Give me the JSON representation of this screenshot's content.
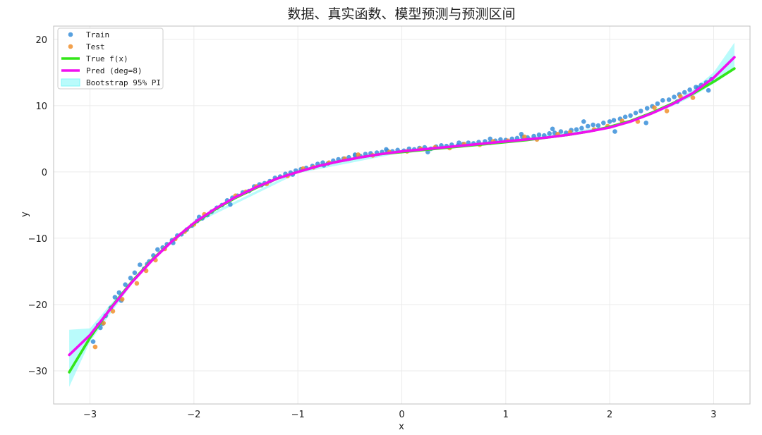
{
  "chart_data": {
    "type": "scatter",
    "title": "数据、真实函数、模型预测与预测区间",
    "xlabel": "x",
    "ylabel": "y",
    "xlim": [
      -3.35,
      3.35
    ],
    "ylim": [
      -35,
      22
    ],
    "xticks": [
      -3,
      -2,
      -1,
      0,
      1,
      2,
      3
    ],
    "xtick_labels": [
      "−3",
      "−2",
      "−1",
      "0",
      "1",
      "2",
      "3"
    ],
    "yticks": [
      -30,
      -20,
      -10,
      0,
      10,
      20
    ],
    "ytick_labels": [
      "−30",
      "−20",
      "−10",
      "0",
      "10",
      "20"
    ],
    "grid": true,
    "legend_position": "top-left",
    "legend": [
      "Train",
      "Test",
      "True f(x)",
      "Pred (deg=8)",
      "Bootstrap 95% PI"
    ],
    "colors": {
      "train": "#3a8fd9",
      "test": "#f0902e",
      "true": "#33e619",
      "pred": "#f010f0",
      "band": "#7ff7f7"
    },
    "true_function": {
      "x": [
        -3.2,
        -3.0,
        -2.8,
        -2.6,
        -2.4,
        -2.2,
        -2.0,
        -1.8,
        -1.6,
        -1.4,
        -1.2,
        -1.0,
        -0.8,
        -0.6,
        -0.4,
        -0.2,
        0.0,
        0.2,
        0.4,
        0.6,
        0.8,
        1.0,
        1.2,
        1.4,
        1.6,
        1.8,
        2.0,
        2.2,
        2.4,
        2.6,
        2.8,
        3.0,
        3.2
      ],
      "y": [
        -30.2,
        -25.0,
        -20.5,
        -16.6,
        -13.2,
        -10.3,
        -7.8,
        -5.7,
        -3.9,
        -2.4,
        -1.0,
        0.0,
        0.9,
        1.6,
        2.2,
        2.7,
        3.0,
        3.3,
        3.6,
        3.9,
        4.2,
        4.5,
        4.8,
        5.2,
        5.6,
        6.1,
        6.8,
        7.7,
        8.9,
        10.3,
        11.8,
        13.6,
        15.6
      ]
    },
    "prediction": {
      "x": [
        -3.2,
        -3.0,
        -2.8,
        -2.6,
        -2.4,
        -2.2,
        -2.0,
        -1.8,
        -1.6,
        -1.4,
        -1.2,
        -1.0,
        -0.8,
        -0.6,
        -0.4,
        -0.2,
        0.0,
        0.2,
        0.4,
        0.6,
        0.8,
        1.0,
        1.2,
        1.4,
        1.6,
        1.8,
        2.0,
        2.2,
        2.4,
        2.6,
        2.8,
        3.0,
        3.2
      ],
      "y": [
        -27.6,
        -24.6,
        -20.6,
        -16.7,
        -13.3,
        -10.3,
        -7.7,
        -5.6,
        -3.8,
        -2.3,
        -1.0,
        0.0,
        0.9,
        1.6,
        2.2,
        2.7,
        3.1,
        3.4,
        3.7,
        4.0,
        4.3,
        4.6,
        4.9,
        5.2,
        5.6,
        6.1,
        6.7,
        7.6,
        8.8,
        10.2,
        11.9,
        14.2,
        17.3
      ]
    },
    "band": {
      "x": [
        -3.2,
        -3.0,
        -2.8,
        -2.6,
        -2.4,
        -2.2,
        -2.0,
        -1.0,
        0.0,
        1.0,
        2.0,
        2.2,
        2.4,
        2.6,
        2.8,
        3.0,
        3.2
      ],
      "lower": [
        -32.4,
        -25.6,
        -21.3,
        -17.0,
        -13.5,
        -10.5,
        -7.9,
        -0.2,
        2.9,
        4.4,
        6.5,
        7.4,
        8.6,
        9.9,
        11.4,
        13.3,
        15.4
      ],
      "upper": [
        -23.8,
        -23.6,
        -19.9,
        -16.4,
        -13.1,
        -10.1,
        -7.5,
        0.2,
        3.3,
        4.8,
        6.9,
        7.8,
        9.0,
        10.5,
        12.4,
        15.0,
        19.5
      ]
    },
    "train_points": {
      "x": [
        -2.97,
        -2.92,
        -2.88,
        -2.85,
        -2.8,
        -2.76,
        -2.72,
        -2.66,
        -2.61,
        -2.57,
        -2.52,
        -2.48,
        -2.43,
        -2.39,
        -2.35,
        -2.3,
        -2.26,
        -2.21,
        -2.16,
        -2.12,
        -2.07,
        -2.02,
        -1.97,
        -1.92,
        -1.87,
        -1.83,
        -1.78,
        -1.73,
        -1.68,
        -1.63,
        -1.58,
        -1.53,
        -1.47,
        -1.42,
        -1.37,
        -1.32,
        -1.27,
        -1.22,
        -1.17,
        -1.12,
        -1.07,
        -1.02,
        -0.97,
        -0.92,
        -0.86,
        -0.81,
        -0.76,
        -0.71,
        -0.66,
        -0.61,
        -0.56,
        -0.51,
        -0.45,
        -0.4,
        -0.35,
        -0.3,
        -0.24,
        -0.19,
        -0.14,
        -0.09,
        -0.04,
        0.02,
        0.07,
        0.12,
        0.17,
        0.22,
        0.28,
        0.33,
        0.38,
        0.43,
        0.48,
        0.54,
        0.59,
        0.64,
        0.69,
        0.74,
        0.8,
        0.85,
        0.9,
        0.95,
        1.0,
        1.06,
        1.11,
        1.16,
        1.21,
        1.27,
        1.32,
        1.37,
        1.42,
        1.47,
        1.53,
        1.58,
        1.63,
        1.68,
        1.73,
        1.79,
        1.84,
        1.89,
        1.94,
        2.0,
        2.04,
        2.1,
        2.15,
        2.2,
        2.25,
        2.3,
        2.36,
        2.41,
        2.46,
        2.51,
        2.57,
        2.62,
        2.67,
        2.72,
        2.77,
        2.83,
        2.88,
        2.93,
        2.98,
        -2.9,
        -2.7,
        -2.45,
        -2.2,
        -1.95,
        -1.65,
        -1.35,
        -1.05,
        -0.75,
        -0.45,
        -0.15,
        0.25,
        0.55,
        0.85,
        1.15,
        1.45,
        1.75,
        2.05,
        2.35,
        2.65,
        2.85,
        2.95
      ],
      "y": [
        -25.6,
        -23.1,
        -22.9,
        -21.7,
        -20.5,
        -18.9,
        -18.2,
        -17.0,
        -16.0,
        -15.2,
        -14.0,
        -14.6,
        -13.5,
        -12.6,
        -11.7,
        -11.4,
        -10.9,
        -10.3,
        -9.6,
        -9.4,
        -8.7,
        -8.1,
        -7.4,
        -7.0,
        -6.5,
        -6.0,
        -5.4,
        -5.0,
        -4.3,
        -3.9,
        -3.6,
        -3.1,
        -2.9,
        -2.2,
        -1.9,
        -1.7,
        -1.4,
        -0.9,
        -0.7,
        -0.3,
        -0.1,
        0.2,
        0.4,
        0.6,
        0.9,
        1.2,
        1.4,
        1.3,
        1.7,
        1.9,
        2.0,
        2.2,
        2.5,
        2.4,
        2.7,
        2.8,
        2.9,
        3.0,
        3.2,
        3.1,
        3.3,
        3.2,
        3.5,
        3.4,
        3.6,
        3.7,
        3.5,
        3.8,
        4.0,
        3.9,
        4.1,
        4.0,
        4.2,
        4.4,
        4.3,
        4.5,
        4.6,
        4.4,
        4.7,
        4.9,
        4.8,
        5.0,
        5.1,
        5.3,
        5.2,
        5.4,
        5.6,
        5.5,
        5.8,
        5.9,
        6.1,
        5.9,
        6.3,
        6.4,
        6.6,
        6.9,
        7.1,
        7.0,
        7.4,
        7.6,
        7.8,
        8.0,
        8.3,
        8.5,
        8.9,
        9.2,
        9.6,
        9.9,
        10.3,
        10.8,
        10.9,
        11.3,
        11.7,
        12.0,
        12.4,
        12.8,
        13.1,
        13.5,
        14.0,
        -23.5,
        -19.4,
        -13.9,
        -10.7,
        -6.8,
        -4.9,
        -2.0,
        -0.4,
        1.0,
        2.6,
        3.4,
        3.0,
        4.4,
        5.0,
        5.7,
        6.5,
        7.6,
        6.1,
        7.4,
        10.6,
        12.7,
        12.3
      ]
    },
    "test_points": {
      "x": [
        -2.95,
        -2.87,
        -2.78,
        -2.69,
        -2.55,
        -2.46,
        -2.37,
        -2.28,
        -2.18,
        -2.09,
        -2.0,
        -1.9,
        -1.6,
        -1.5,
        -1.4,
        -1.3,
        -1.1,
        -0.95,
        -0.85,
        -0.7,
        -0.55,
        -0.42,
        -0.28,
        -0.12,
        0.05,
        0.18,
        0.32,
        0.46,
        0.6,
        0.75,
        0.88,
        1.02,
        1.18,
        1.3,
        1.5,
        1.62,
        1.85,
        1.98,
        2.12,
        2.27,
        2.43,
        2.55,
        2.68,
        2.8,
        2.9
      ],
      "y": [
        -26.4,
        -22.8,
        -21.0,
        -19.2,
        -16.8,
        -14.9,
        -13.3,
        -11.6,
        -10.1,
        -9.0,
        -7.9,
        -6.4,
        -3.6,
        -3.0,
        -2.2,
        -1.8,
        -0.6,
        0.5,
        0.7,
        1.4,
        2.0,
        2.6,
        2.5,
        3.0,
        3.1,
        3.5,
        3.7,
        3.6,
        4.2,
        4.1,
        4.6,
        4.7,
        5.3,
        4.9,
        5.7,
        6.0,
        6.4,
        6.9,
        7.7,
        7.6,
        9.7,
        9.2,
        11.4,
        11.2,
        12.9
      ]
    }
  }
}
